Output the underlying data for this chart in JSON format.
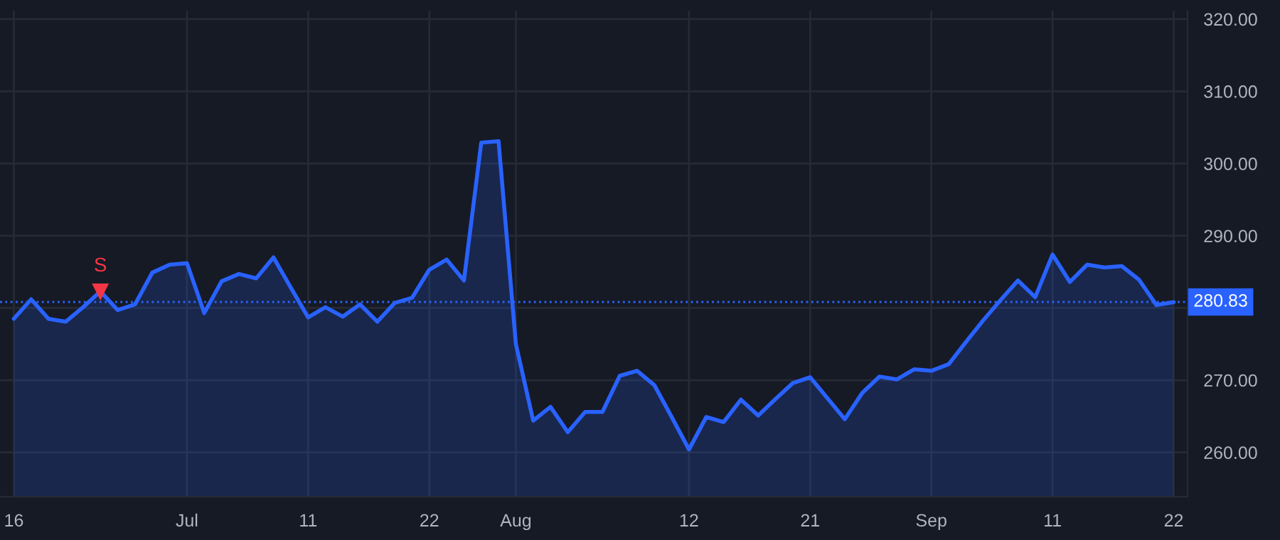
{
  "chart_data": {
    "type": "area",
    "categories": [
      "16",
      null,
      null,
      null,
      null,
      null,
      null,
      null,
      null,
      null,
      "Jul",
      null,
      null,
      null,
      null,
      null,
      null,
      "11",
      null,
      null,
      null,
      null,
      null,
      null,
      "22",
      null,
      null,
      null,
      null,
      "Aug",
      null,
      null,
      null,
      null,
      null,
      null,
      null,
      null,
      null,
      "12",
      null,
      null,
      null,
      null,
      null,
      null,
      "21",
      null,
      null,
      null,
      null,
      null,
      null,
      "Sep",
      null,
      null,
      null,
      null,
      null,
      null,
      "11",
      null,
      null,
      null,
      null,
      null,
      null,
      "22"
    ],
    "series": [
      {
        "color": "#2962ff",
        "values": [
          278.5,
          281.2,
          278.5,
          278.1,
          280.1,
          282.3,
          279.7,
          280.5,
          284.9,
          286.0,
          286.2,
          279.3,
          283.7,
          284.7,
          284.1,
          287.0,
          282.8,
          278.7,
          280.1,
          278.8,
          280.5,
          278.1,
          280.7,
          281.4,
          285.3,
          286.7,
          283.8,
          302.9,
          303.1,
          275.0,
          264.4,
          266.3,
          262.8,
          265.6,
          265.6,
          270.6,
          271.3,
          269.3,
          264.9,
          260.4,
          264.9,
          264.2,
          267.3,
          265.1,
          267.4,
          269.6,
          270.4,
          267.5,
          264.6,
          268.2,
          270.5,
          270.1,
          271.5,
          271.3,
          272.2,
          275.3,
          278.3,
          281.1,
          283.8,
          281.5,
          287.4,
          283.6,
          286.0,
          285.6,
          285.8,
          283.9,
          280.4,
          280.8
        ]
      },
      {
        "type": "scatter",
        "color": "#f23645",
        "marker": "triangle",
        "values": [
          null,
          null,
          null,
          null,
          null,
          282.3,
          null,
          null,
          null,
          null,
          null,
          null,
          null,
          null,
          null,
          null,
          null,
          null,
          null,
          null,
          null,
          null,
          null,
          null,
          null,
          null,
          null,
          null,
          null,
          null,
          null,
          null,
          null,
          null,
          null,
          null,
          null,
          null,
          null,
          null,
          null,
          null,
          null,
          null,
          null,
          null,
          null,
          null,
          null,
          null,
          null,
          null,
          null,
          null,
          null,
          null,
          null,
          null,
          null,
          null,
          null,
          null,
          null,
          null,
          null,
          null,
          null,
          null
        ]
      }
    ],
    "annotations": [
      "S"
    ],
    "ylim": [
      253.85,
      321.15
    ],
    "yticks": [
      {
        "value": 260,
        "label": "260.00"
      },
      {
        "value": 270,
        "label": "270.00"
      },
      {
        "value": 280,
        "label": null
      },
      {
        "value": 290,
        "label": "290.00"
      },
      {
        "value": 300,
        "label": "300.00"
      },
      {
        "value": 310,
        "label": "310.00"
      },
      {
        "value": 320,
        "label": "320.00"
      }
    ],
    "ref_lines": [
      {
        "axis": "y",
        "value": 280.83,
        "label": "280.83",
        "color": "#2962ff",
        "line_style": "dotted"
      }
    ],
    "grid": true
  }
}
